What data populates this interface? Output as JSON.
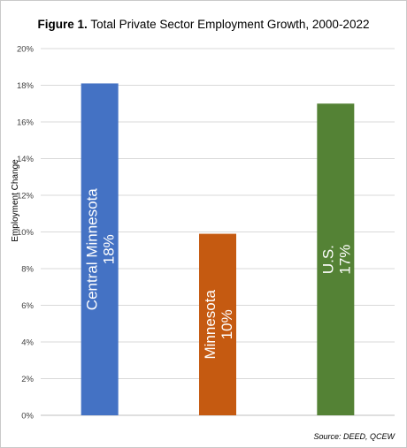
{
  "figure": {
    "label": "Figure 1.",
    "title": "Total Private Sector Employment Growth, 2000-2022",
    "source": "Source: DEED, QCEW"
  },
  "chart_data": {
    "type": "bar",
    "categories": [
      "Central Minnesota",
      "Minnesota",
      "U.S."
    ],
    "values": [
      18.1,
      9.9,
      17.0
    ],
    "data_labels": [
      "18%",
      "10%",
      "17%"
    ],
    "colors": [
      "#4472c4",
      "#c55a11",
      "#548235"
    ],
    "ylabel": "Employment Change",
    "ylim": [
      0,
      20
    ],
    "yticks": [
      "0%",
      "2%",
      "4%",
      "6%",
      "8%",
      "10%",
      "12%",
      "14%",
      "16%",
      "18%",
      "20%"
    ],
    "grid": true,
    "legend": "none"
  }
}
